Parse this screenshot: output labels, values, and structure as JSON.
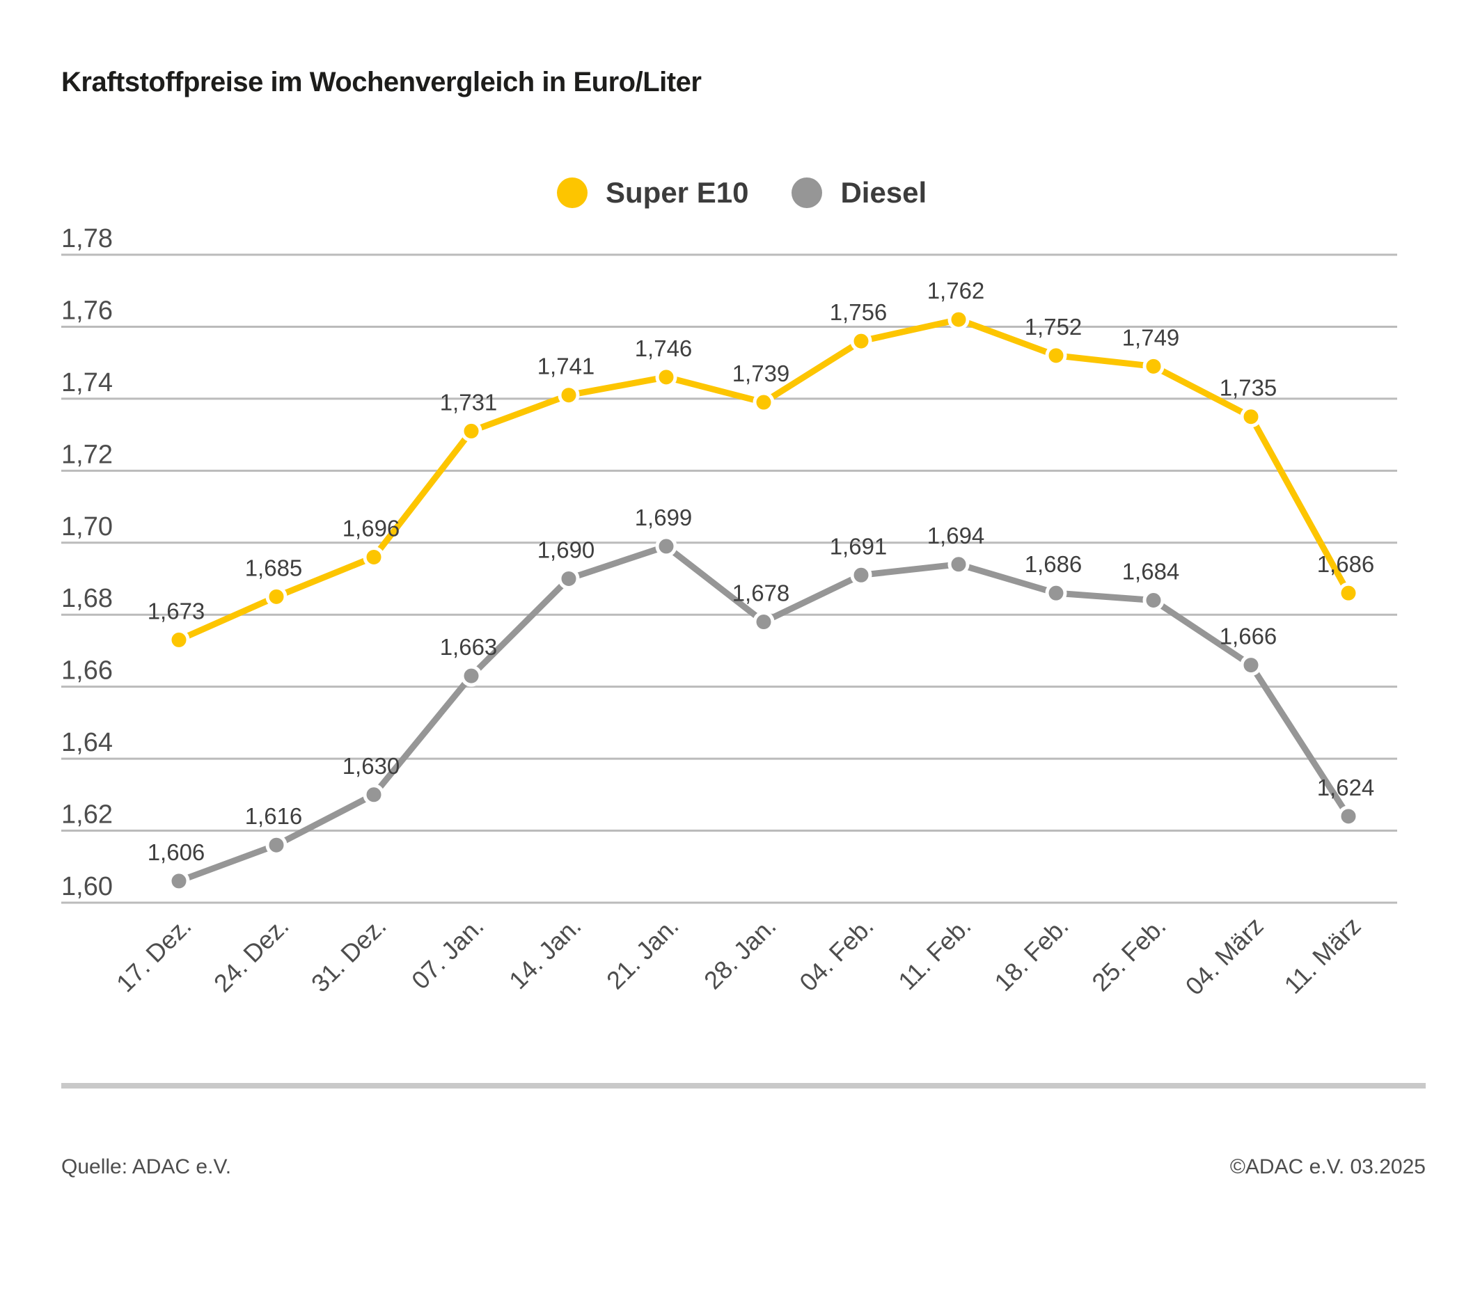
{
  "title": "Kraftstoffpreise im Wochenvergleich in Euro/Liter",
  "legend": [
    {
      "label": "Super E10",
      "color": "#FDC500"
    },
    {
      "label": "Diesel",
      "color": "#969696"
    }
  ],
  "chart_data": {
    "type": "line",
    "title": "Kraftstoffpreise im Wochenvergleich in Euro/Liter",
    "categories": [
      "17. Dez.",
      "24. Dez.",
      "31. Dez.",
      "07. Jan.",
      "14. Jan.",
      "21. Jan.",
      "28. Jan.",
      "04. Feb.",
      "11. Feb.",
      "18. Feb.",
      "25. Feb.",
      "04. März",
      "11. März"
    ],
    "series": [
      {
        "name": "Super E10",
        "color": "#FDC500",
        "values": [
          1.673,
          1.685,
          1.696,
          1.731,
          1.741,
          1.746,
          1.739,
          1.756,
          1.762,
          1.752,
          1.749,
          1.735,
          1.686
        ],
        "labels": [
          "1,673",
          "1,685",
          "1,696",
          "1,731",
          "1,741",
          "1,746",
          "1,739",
          "1,756",
          "1,762",
          "1,752",
          "1,749",
          "1,735",
          "1,686"
        ]
      },
      {
        "name": "Diesel",
        "color": "#969696",
        "values": [
          1.606,
          1.616,
          1.63,
          1.663,
          1.69,
          1.699,
          1.678,
          1.691,
          1.694,
          1.686,
          1.684,
          1.666,
          1.624
        ],
        "labels": [
          "1,606",
          "1,616",
          "1,630",
          "1,663",
          "1,690",
          "1,699",
          "1,678",
          "1,691",
          "1,694",
          "1,686",
          "1,684",
          "1,666",
          "1,624"
        ]
      }
    ],
    "ylabel": "Euro/Liter",
    "xlabel": "",
    "ylim": [
      1.6,
      1.78
    ],
    "ytick_step": 0.02,
    "yticks": [
      "1,78",
      "1,76",
      "1,74",
      "1,72",
      "1,70",
      "1,68",
      "1,66",
      "1,64",
      "1,62",
      "1,60"
    ],
    "grid": true,
    "legend_position": "top-center",
    "decimal_separator": ","
  },
  "footer": {
    "source": "Quelle: ADAC e.V.",
    "copyright": "©ADAC e.V. 03.2025"
  }
}
